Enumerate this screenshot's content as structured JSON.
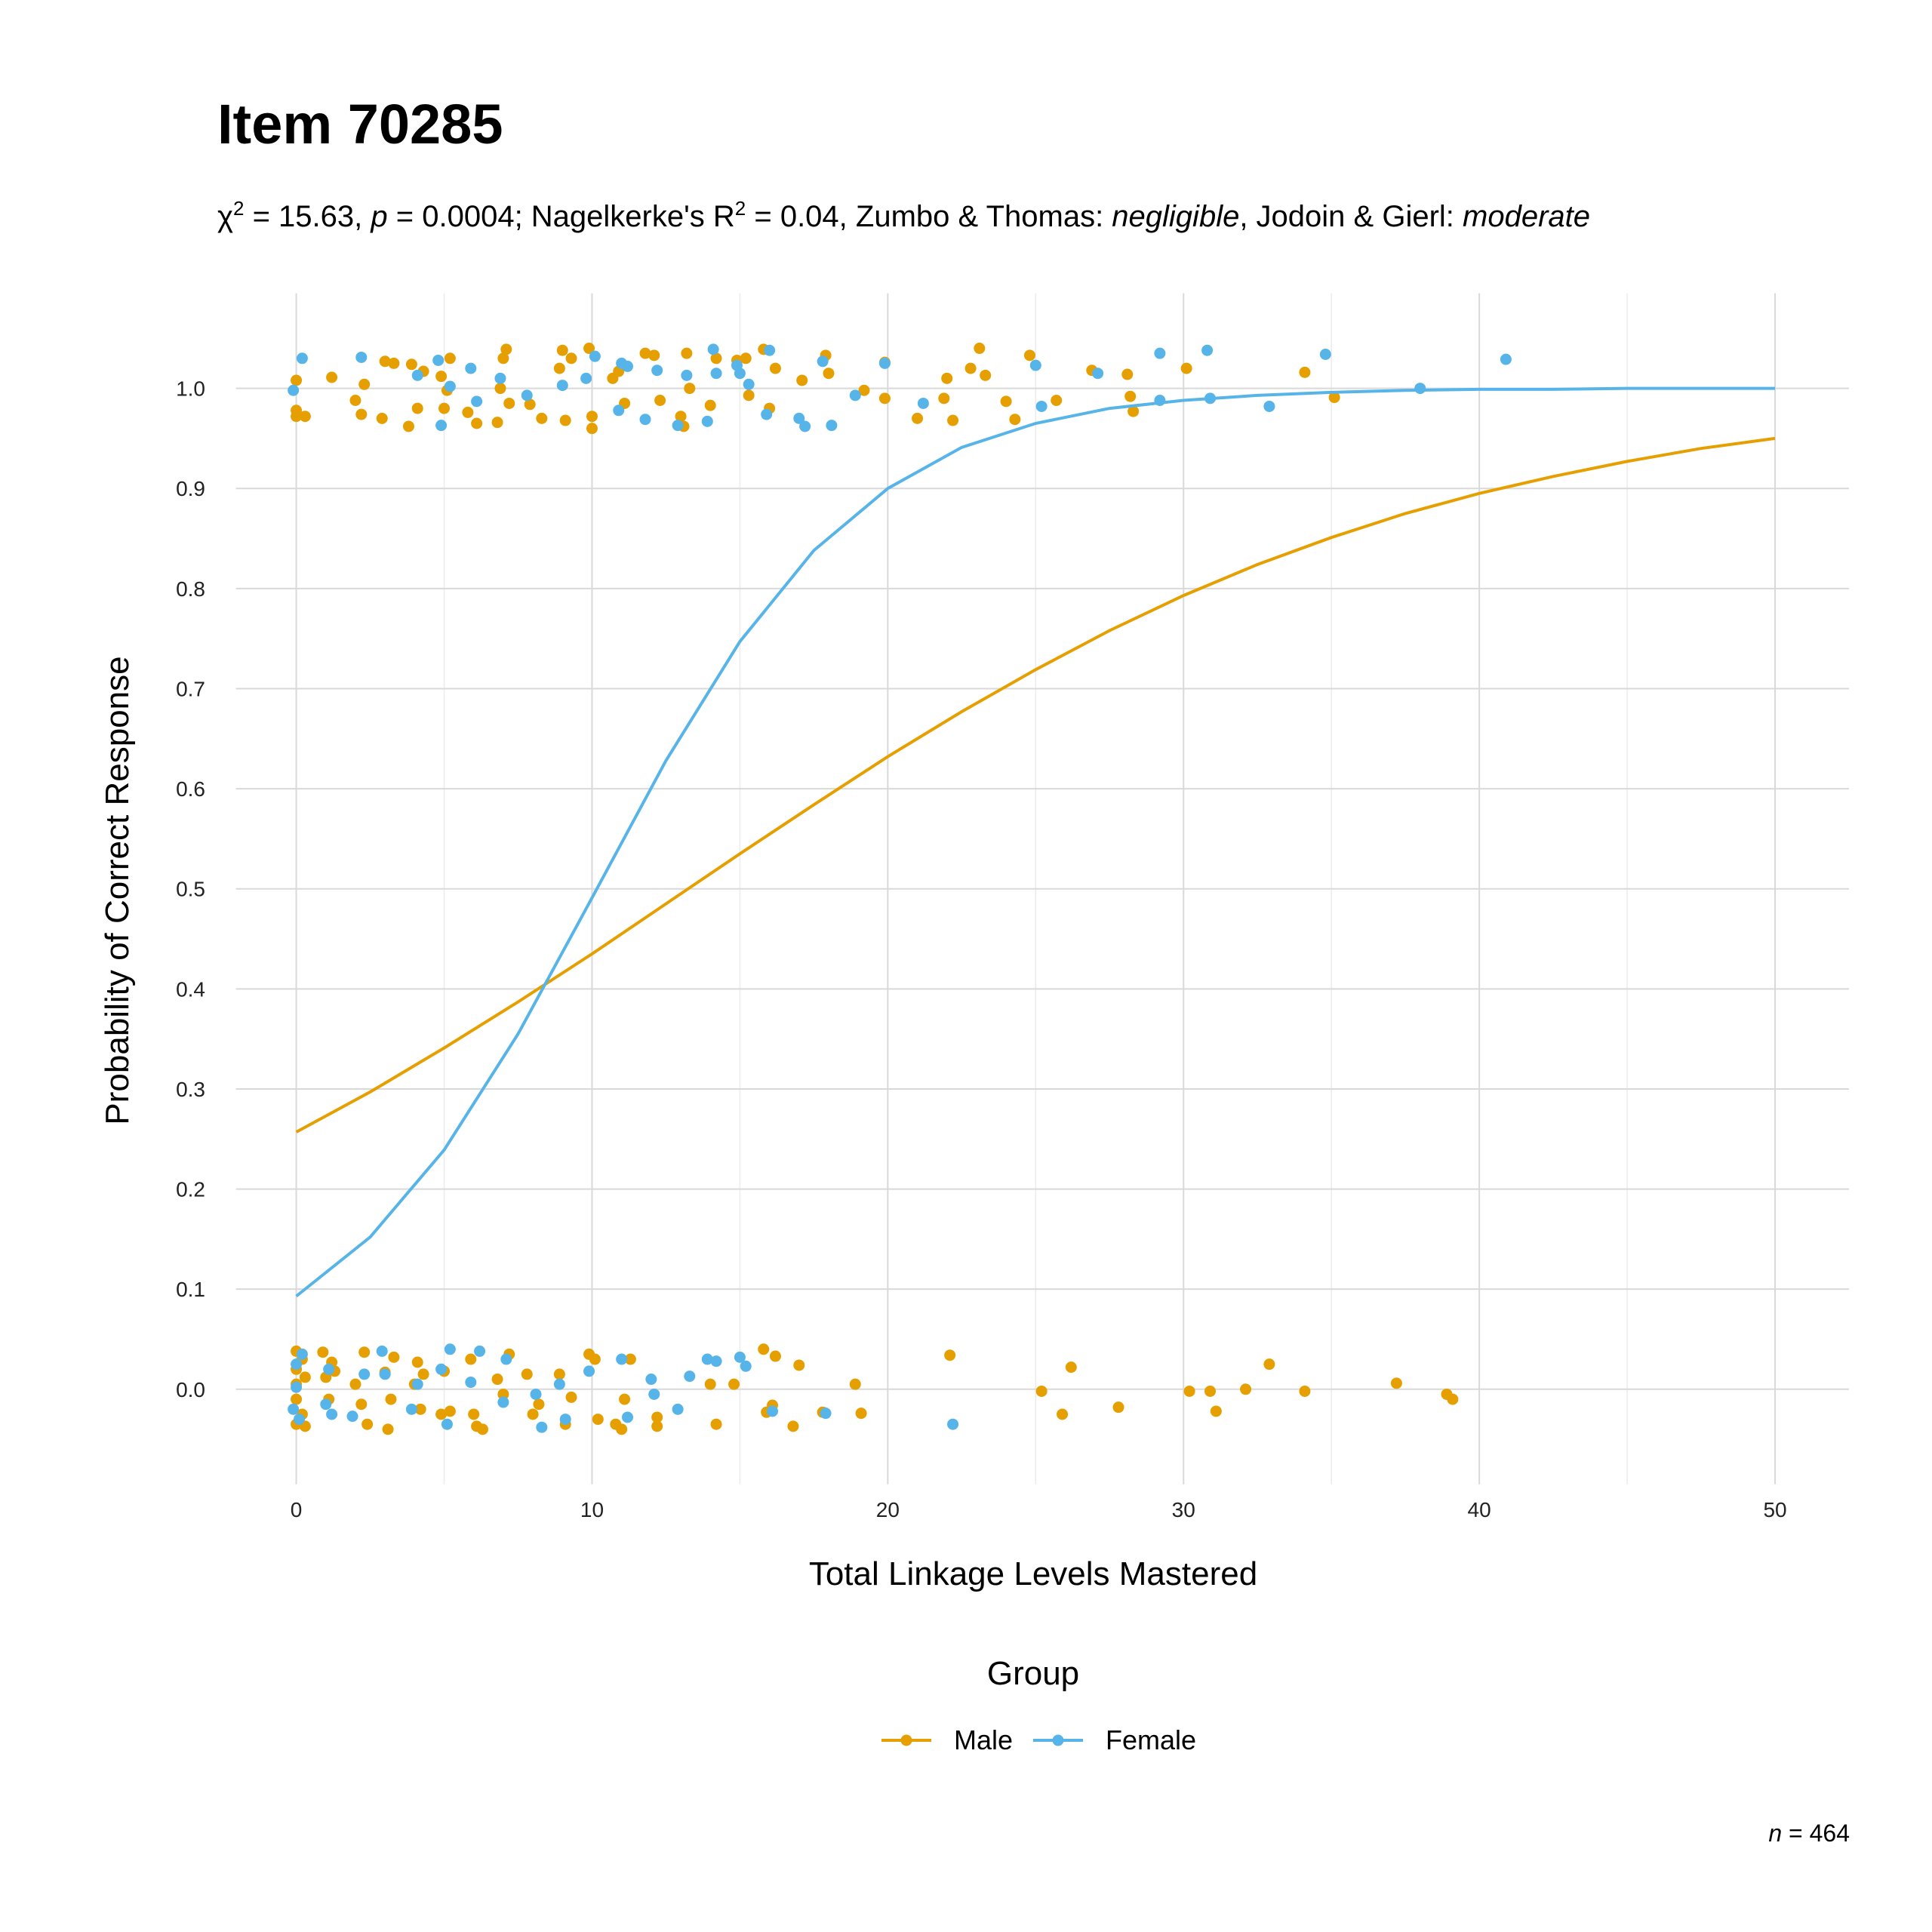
{
  "chart_data": {
    "type": "scatter",
    "title": "Item 70285",
    "subtitle": [
      {
        "text": "χ"
      },
      {
        "text": "2",
        "style": "sup"
      },
      {
        "text": " = 15.63, "
      },
      {
        "text": "p",
        "style": "italic"
      },
      {
        "text": " = 0.0004; Nagelkerke's R"
      },
      {
        "text": "2",
        "style": "sup"
      },
      {
        "text": " = 0.04, Zumbo & Thomas: "
      },
      {
        "text": "negligible",
        "style": "italic"
      },
      {
        "text": ", Jodoin & Gierl: "
      },
      {
        "text": "moderate",
        "style": "italic"
      }
    ],
    "x_label": "Total Linkage Levels Mastered",
    "y_label": "Probability of Correct Response",
    "legend_title": "Group",
    "note": [
      {
        "text": "n",
        "style": "italic"
      },
      {
        "text": " = 464"
      }
    ],
    "xlim": [
      -2.5,
      52.5
    ],
    "ylim": [
      -0.095,
      1.095
    ],
    "xticks": [
      0,
      10,
      20,
      30,
      40,
      50
    ],
    "xminor": [
      5,
      15,
      25,
      35,
      45
    ],
    "yticks": [
      {
        "value": 0,
        "label": "0.0"
      },
      0.1,
      0.2,
      0.3,
      0.4,
      0.5,
      0.6,
      0.7,
      0.8,
      0.9,
      {
        "value": 1,
        "label": "1.0"
      }
    ],
    "grid": true,
    "legend": "bottom",
    "series": [
      {
        "name": "Male",
        "color": "#E69F00",
        "points": {
          "x": [
            0,
            0,
            0,
            0.3,
            1.2,
            2,
            2.2,
            2.3,
            2.9,
            3,
            3.3,
            3.8,
            3.9,
            4.1,
            4.3,
            4.9,
            5,
            5.1,
            5.2,
            5.8,
            6.1,
            6.8,
            6.9,
            7,
            7.1,
            7.2,
            7.9,
            8.3,
            8.9,
            9,
            9.1,
            9.3,
            9.9,
            10,
            10,
            10.7,
            10.9,
            11.1,
            11.8,
            12.1,
            12.3,
            13,
            13.1,
            13.2,
            13.3,
            14,
            14.2,
            14.9,
            15.2,
            15.3,
            15.8,
            16,
            16.2,
            17.1,
            17.9,
            18,
            19.2,
            19.9,
            19.9,
            21,
            21.9,
            22,
            22.2,
            22.8,
            23.1,
            23.3,
            24,
            24.3,
            24.8,
            25.7,
            26.9,
            28.1,
            28.2,
            28.3,
            30.1,
            34.1,
            35.1,
            0,
            0,
            0,
            0,
            0,
            0.2,
            0.2,
            0.3,
            0.3,
            0.9,
            1,
            1.1,
            1.2,
            1.3,
            2,
            2.2,
            2.3,
            2.4,
            3,
            3.1,
            3.2,
            3.3,
            4,
            4.1,
            4.2,
            4.3,
            4.9,
            5,
            5.2,
            5.9,
            6,
            6.1,
            6.3,
            6.8,
            7,
            7.2,
            7.8,
            8,
            8.2,
            8.9,
            9.1,
            9.3,
            9.9,
            10.1,
            10.2,
            10.8,
            11,
            11.1,
            11.3,
            12.2,
            12.2,
            14,
            14.2,
            14.8,
            15.8,
            15.9,
            16.1,
            16.2,
            16.8,
            17,
            17.8,
            18.9,
            19.1,
            22.1,
            25.2,
            25.9,
            26.2,
            27.8,
            30.2,
            30.9,
            31.1,
            32.1,
            32.9,
            34.1,
            37.2,
            38.9,
            39.1
          ],
          "values": [
            1.008,
            0.978,
            0.972,
            0.972,
            1.011,
            0.988,
            0.974,
            1.004,
            0.97,
            1.027,
            1.025,
            0.962,
            1.024,
            0.98,
            1.017,
            1.012,
            0.98,
            0.998,
            1.03,
            0.976,
            0.965,
            0.966,
            1.0,
            1.03,
            1.039,
            0.985,
            0.984,
            0.97,
            1.02,
            1.038,
            0.968,
            1.03,
            1.04,
            0.96,
            0.972,
            1.01,
            1.017,
            0.985,
            1.035,
            1.033,
            0.988,
            0.972,
            0.962,
            1.035,
            1.0,
            0.983,
            1.03,
            1.028,
            1.03,
            0.993,
            1.039,
            0.98,
            1.02,
            1.008,
            1.033,
            1.015,
            0.998,
            0.99,
            1.026,
            0.97,
            0.99,
            1.01,
            0.968,
            1.02,
            1.04,
            1.013,
            0.987,
            0.969,
            1.033,
            0.988,
            1.018,
            1.014,
            0.992,
            0.977,
            1.02,
            1.016,
            0.991,
            0.038,
            0.02,
            0.005,
            -0.01,
            -0.035,
            0.03,
            -0.025,
            -0.037,
            0.012,
            0.037,
            0.012,
            -0.01,
            0.027,
            0.018,
            0.005,
            -0.015,
            0.037,
            -0.035,
            0.017,
            -0.04,
            -0.01,
            0.032,
            0.005,
            0.027,
            -0.02,
            0.015,
            -0.025,
            0.018,
            -0.022,
            0.03,
            -0.025,
            -0.037,
            -0.04,
            0.01,
            -0.005,
            0.035,
            0.015,
            -0.025,
            -0.015,
            0.015,
            -0.035,
            -0.008,
            0.035,
            0.03,
            -0.03,
            -0.035,
            -0.04,
            -0.01,
            0.03,
            -0.028,
            -0.037,
            0.005,
            -0.035,
            0.005,
            0.04,
            -0.023,
            -0.016,
            0.033,
            -0.037,
            0.024,
            -0.023,
            0.005,
            -0.024,
            0.034,
            -0.002,
            -0.025,
            0.022,
            -0.018,
            -0.002,
            -0.002,
            -0.022,
            0,
            0.025,
            -0.002,
            0.006,
            -0.005,
            -0.01
          ]
        },
        "curve": {
          "x": [
            0,
            2.5,
            5,
            7.5,
            10,
            12.5,
            15,
            17.5,
            20,
            22.5,
            25,
            27.5,
            30,
            32.5,
            35,
            37.5,
            40,
            42.5,
            45,
            47.5,
            50
          ],
          "values": [
            0.257,
            0.297,
            0.341,
            0.387,
            0.435,
            0.485,
            0.535,
            0.584,
            0.632,
            0.677,
            0.719,
            0.758,
            0.793,
            0.824,
            0.851,
            0.875,
            0.895,
            0.912,
            0.927,
            0.94,
            0.95
          ]
        }
      },
      {
        "name": "Female",
        "color": "#56B4E9",
        "points": {
          "x": [
            -0.1,
            0.2,
            2.2,
            4.1,
            4.8,
            4.9,
            5.2,
            5.9,
            6.1,
            6.9,
            7.8,
            9,
            9.8,
            10.1,
            10.9,
            11,
            11.2,
            11.8,
            12.2,
            12.9,
            13.2,
            13.9,
            14.1,
            14.2,
            14.9,
            15,
            15.3,
            15.9,
            16,
            17,
            17.2,
            17.8,
            18.1,
            18.9,
            19.9,
            21.2,
            25,
            25.2,
            27.1,
            29.2,
            29.2,
            30.8,
            30.9,
            32.9,
            34.8,
            38,
            40.9,
            0,
            0,
            -0.1,
            0.2,
            0.1,
            1,
            1.2,
            1.1,
            1.9,
            2.3,
            2.9,
            3,
            3.9,
            4.1,
            4.9,
            5.1,
            5.2,
            5.9,
            6.2,
            7,
            7.1,
            8.1,
            8.3,
            8.9,
            9.1,
            9.9,
            11,
            11.2,
            12,
            12.1,
            12.9,
            13.3,
            13.9,
            14.2,
            15,
            15.2,
            16.1,
            17.9,
            22.2
          ],
          "values": [
            0.998,
            1.03,
            1.031,
            1.013,
            1.028,
            0.963,
            1.002,
            1.02,
            0.987,
            1.01,
            0.993,
            1.003,
            1.01,
            1.032,
            0.978,
            1.025,
            1.022,
            0.969,
            1.018,
            0.963,
            1.013,
            0.967,
            1.039,
            1.015,
            1.023,
            1.015,
            1.004,
            0.974,
            1.038,
            0.97,
            0.962,
            1.027,
            0.963,
            0.993,
            1.025,
            0.985,
            1.023,
            0.982,
            1.015,
            1.035,
            0.988,
            1.038,
            0.99,
            0.982,
            1.034,
            1.0,
            1.029,
            0.025,
            0.002,
            -0.02,
            0.035,
            -0.03,
            -0.015,
            -0.025,
            0.02,
            -0.027,
            0.015,
            0.038,
            0.015,
            -0.02,
            0.005,
            0.02,
            -0.035,
            0.04,
            0.007,
            0.038,
            -0.013,
            0.03,
            -0.005,
            -0.038,
            0.005,
            -0.03,
            0.018,
            0.03,
            -0.028,
            0.01,
            -0.005,
            -0.02,
            0.013,
            0.03,
            0.028,
            0.032,
            0.023,
            -0.022,
            -0.024,
            -0.035
          ]
        },
        "curve": {
          "x": [
            0,
            2.5,
            5,
            7.5,
            10,
            12.5,
            15,
            17.5,
            20,
            22.5,
            25,
            27.5,
            30,
            32.5,
            35,
            37.5,
            40,
            42.5,
            45,
            47.5,
            50
          ],
          "values": [
            0.093,
            0.152,
            0.239,
            0.355,
            0.491,
            0.628,
            0.747,
            0.838,
            0.9,
            0.941,
            0.965,
            0.98,
            0.988,
            0.993,
            0.996,
            0.998,
            0.999,
            0.999,
            1.0,
            1.0,
            1.0
          ]
        }
      }
    ]
  }
}
